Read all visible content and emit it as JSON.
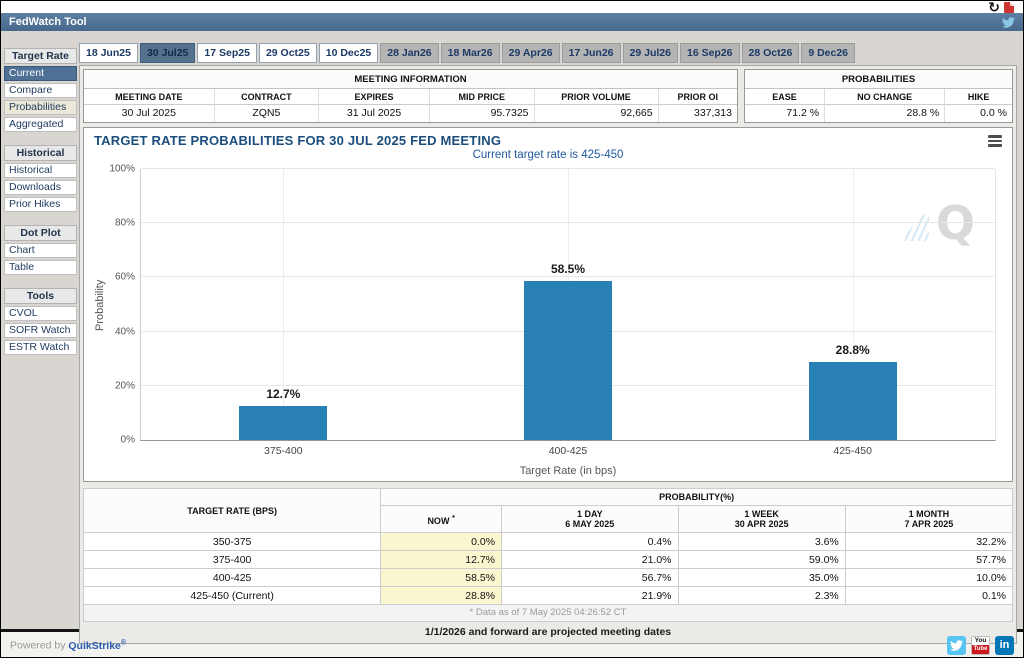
{
  "window": {
    "title": "FedWatch Tool"
  },
  "header_icons": {
    "refresh_glyph": "↻",
    "pdf": "pdf-icon",
    "twitter": "twitter-icon"
  },
  "tabs": {
    "items": [
      {
        "label": "18 Jun25",
        "state": "normal"
      },
      {
        "label": "30 Jul25",
        "state": "selected"
      },
      {
        "label": "17 Sep25",
        "state": "normal"
      },
      {
        "label": "29 Oct25",
        "state": "normal"
      },
      {
        "label": "10 Dec25",
        "state": "normal"
      },
      {
        "label": "28 Jan26",
        "state": "future"
      },
      {
        "label": "18 Mar26",
        "state": "future"
      },
      {
        "label": "29 Apr26",
        "state": "future"
      },
      {
        "label": "17 Jun26",
        "state": "future"
      },
      {
        "label": "29 Jul26",
        "state": "future"
      },
      {
        "label": "16 Sep26",
        "state": "future"
      },
      {
        "label": "28 Oct26",
        "state": "future"
      },
      {
        "label": "9 Dec26",
        "state": "future"
      }
    ]
  },
  "sidebar": {
    "sections": [
      {
        "header": "Target Rate",
        "items": [
          {
            "label": "Current",
            "state": "selected"
          },
          {
            "label": "Compare",
            "state": "normal"
          },
          {
            "label": "Probabilities",
            "state": "highlighted"
          },
          {
            "label": "Aggregated",
            "state": "normal"
          }
        ]
      },
      {
        "header": "Historical",
        "items": [
          {
            "label": "Historical",
            "state": "normal"
          },
          {
            "label": "Downloads",
            "state": "normal"
          },
          {
            "label": "Prior Hikes",
            "state": "normal"
          }
        ]
      },
      {
        "header": "Dot Plot",
        "items": [
          {
            "label": "Chart",
            "state": "normal"
          },
          {
            "label": "Table",
            "state": "normal"
          }
        ]
      },
      {
        "header": "Tools",
        "items": [
          {
            "label": "CVOL",
            "state": "normal"
          },
          {
            "label": "SOFR Watch",
            "state": "normal"
          },
          {
            "label": "ESTR Watch",
            "state": "normal"
          }
        ]
      }
    ]
  },
  "meeting_info": {
    "title": "MEETING INFORMATION",
    "headers": [
      "MEETING DATE",
      "CONTRACT",
      "EXPIRES",
      "MID PRICE",
      "PRIOR VOLUME",
      "PRIOR OI"
    ],
    "values": [
      "30 Jul 2025",
      "ZQN5",
      "31 Jul 2025",
      "95.7325",
      "92,665",
      "337,313"
    ]
  },
  "probabilities_summary": {
    "title": "PROBABILITIES",
    "headers": [
      "EASE",
      "NO CHANGE",
      "HIKE"
    ],
    "values": [
      "71.2 %",
      "28.8 %",
      "0.0 %"
    ]
  },
  "chart": {
    "title": "TARGET RATE PROBABILITIES FOR 30 JUL 2025 FED MEETING",
    "subtitle": "Current target rate is 425-450",
    "watermark": "Q"
  },
  "chart_data": {
    "type": "bar",
    "categories": [
      "375-400",
      "400-425",
      "425-450"
    ],
    "values": [
      12.7,
      58.5,
      28.8
    ],
    "value_labels": [
      "12.7%",
      "58.5%",
      "28.8%"
    ],
    "title": "TARGET RATE PROBABILITIES FOR 30 JUL 2025 FED MEETING",
    "subtitle": "Current target rate is 425-450",
    "xlabel": "Target Rate (in bps)",
    "ylabel": "Probability",
    "ylim": [
      0,
      100
    ],
    "yticks": [
      0,
      20,
      40,
      60,
      80,
      100
    ],
    "ytick_suffix": "%",
    "bar_color": "#2980b5",
    "grid": true,
    "legend": "none"
  },
  "bottom_table": {
    "rate_header": "TARGET RATE (BPS)",
    "group_header": "PROBABILITY(%)",
    "columns": [
      {
        "line1": "NOW",
        "sup": "*",
        "line2": ""
      },
      {
        "line1": "1 DAY",
        "line2": "6 MAY 2025"
      },
      {
        "line1": "1 WEEK",
        "line2": "30 APR 2025"
      },
      {
        "line1": "1 MONTH",
        "line2": "7 APR 2025"
      }
    ],
    "rows": [
      [
        "350-375",
        "0.0%",
        "0.4%",
        "3.6%",
        "32.2%"
      ],
      [
        "375-400",
        "12.7%",
        "21.0%",
        "59.0%",
        "57.7%"
      ],
      [
        "400-425",
        "58.5%",
        "56.7%",
        "35.0%",
        "10.0%"
      ],
      [
        "425-450 (Current)",
        "28.8%",
        "21.9%",
        "2.3%",
        "0.1%"
      ]
    ],
    "footnote": "* Data as of 7 May 2025 04:26:52 CT"
  },
  "notes": {
    "projection": "1/1/2026 and forward are projected meeting dates"
  },
  "footer": {
    "powered_by": "Powered by",
    "brand": "QuikStrike",
    "reg": "®",
    "youtube_top": "You",
    "youtube_bottom": "Tube",
    "linkedin_label": "in"
  },
  "colors": {
    "titlebar": "#45688c",
    "bar": "#2980b5",
    "selected_tab": "#54718e",
    "now_column_bg": "#faf7d0"
  }
}
